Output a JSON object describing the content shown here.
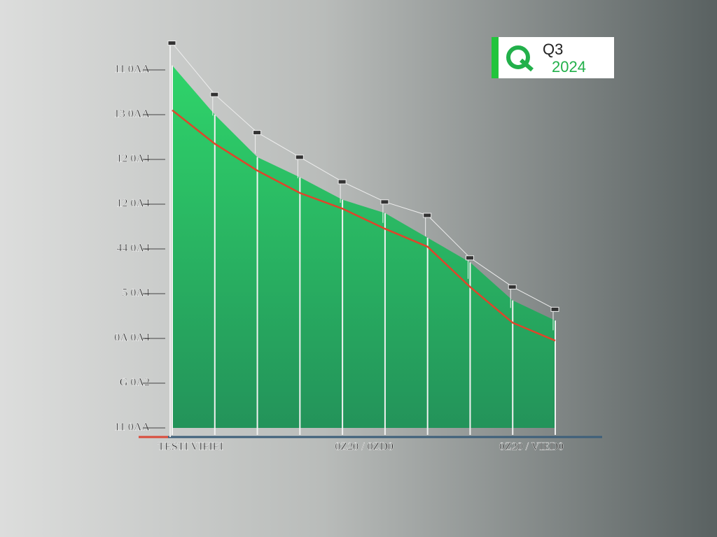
{
  "chart_data": {
    "type": "area",
    "badge": {
      "title": "Q3",
      "subtitle": "2024"
    },
    "categories": [
      null,
      "TESTI VIFIEI",
      null,
      null,
      null,
      "0Z20 / 0ZD0",
      null,
      null,
      null,
      "0Z20 / VIED0"
    ],
    "ylim": [
      0,
      8
    ],
    "yticks": [
      {
        "value": 0,
        "label": "11 0ΛΛ"
      },
      {
        "value": 1,
        "label": "G 0Λ2"
      },
      {
        "value": 2,
        "label": "0Λ 0Λ4"
      },
      {
        "value": 3,
        "label": "5 0Λ4"
      },
      {
        "value": 4,
        "label": "44 0Λ4"
      },
      {
        "value": 5,
        "label": "12 0Λ4"
      },
      {
        "value": 6,
        "label": "12 0Λ4"
      },
      {
        "value": 7,
        "label": "13 0ΛΛ"
      },
      {
        "value": 8,
        "label": "11 0ΛΛ"
      }
    ],
    "series": [
      {
        "style": "area",
        "color": "#2fd46a",
        "values": [
          8.1,
          7.0,
          6.05,
          5.6,
          5.1,
          4.8,
          4.25,
          3.7,
          2.85,
          2.4
        ]
      },
      {
        "style": "line",
        "color": "#e0442a",
        "values": [
          7.1,
          6.35,
          5.75,
          5.25,
          4.9,
          4.45,
          4.05,
          3.15,
          2.35,
          1.95
        ]
      },
      {
        "style": "markers",
        "color": "#eeeeee",
        "values": [
          8.6,
          7.45,
          6.6,
          6.05,
          5.5,
          5.05,
          4.75,
          3.8,
          3.15,
          2.65
        ]
      }
    ]
  }
}
